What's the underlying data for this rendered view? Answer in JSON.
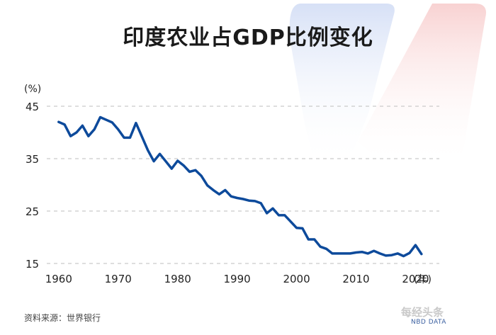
{
  "chart_data": {
    "type": "line",
    "title": "印度农业占GDP比例变化",
    "ylabel": "(%)",
    "xlabel": "(年)",
    "ylim": [
      15,
      45
    ],
    "xlim": [
      1958,
      2024
    ],
    "yticks": [
      45,
      35,
      25,
      15
    ],
    "xticks": [
      1960,
      1970,
      1980,
      1990,
      2000,
      2010,
      2020
    ],
    "grid": true,
    "line_color": "#0d4a9b",
    "series": [
      {
        "x": [
          1960,
          1961,
          1962,
          1963,
          1964,
          1965,
          1966,
          1967,
          1968,
          1969,
          1970,
          1971,
          1972,
          1973,
          1974,
          1975,
          1976,
          1977,
          1978,
          1979,
          1980,
          1981,
          1982,
          1983,
          1984,
          1985,
          1986,
          1987,
          1988,
          1989,
          1990,
          1991,
          1992,
          1993,
          1994,
          1995,
          1996,
          1997,
          1998,
          1999,
          2000,
          2001,
          2002,
          2003,
          2004,
          2005,
          2006,
          2007,
          2008,
          2009,
          2010,
          2011,
          2012,
          2013,
          2014,
          2015,
          2016,
          2017,
          2018,
          2019,
          2020,
          2021
        ],
        "values": [
          42.0,
          41.5,
          39.3,
          40.0,
          41.3,
          39.3,
          40.6,
          42.9,
          42.4,
          41.9,
          40.6,
          39.0,
          39.0,
          41.8,
          39.2,
          36.6,
          34.5,
          35.9,
          34.5,
          33.1,
          34.6,
          33.7,
          32.5,
          32.8,
          31.7,
          29.9,
          29.0,
          28.2,
          29.0,
          27.8,
          27.5,
          27.3,
          27.0,
          26.9,
          26.5,
          24.6,
          25.5,
          24.2,
          24.2,
          23.0,
          21.8,
          21.7,
          19.6,
          19.6,
          18.2,
          17.8,
          16.9,
          16.9,
          16.9,
          16.9,
          17.1,
          17.2,
          16.9,
          17.4,
          16.9,
          16.5,
          16.6,
          16.9,
          16.4,
          17.0,
          18.5,
          16.8
        ]
      }
    ]
  },
  "source": "资料来源：世界银行",
  "watermark": {
    "brand": "每经头条",
    "sub": "NBD DATA"
  }
}
